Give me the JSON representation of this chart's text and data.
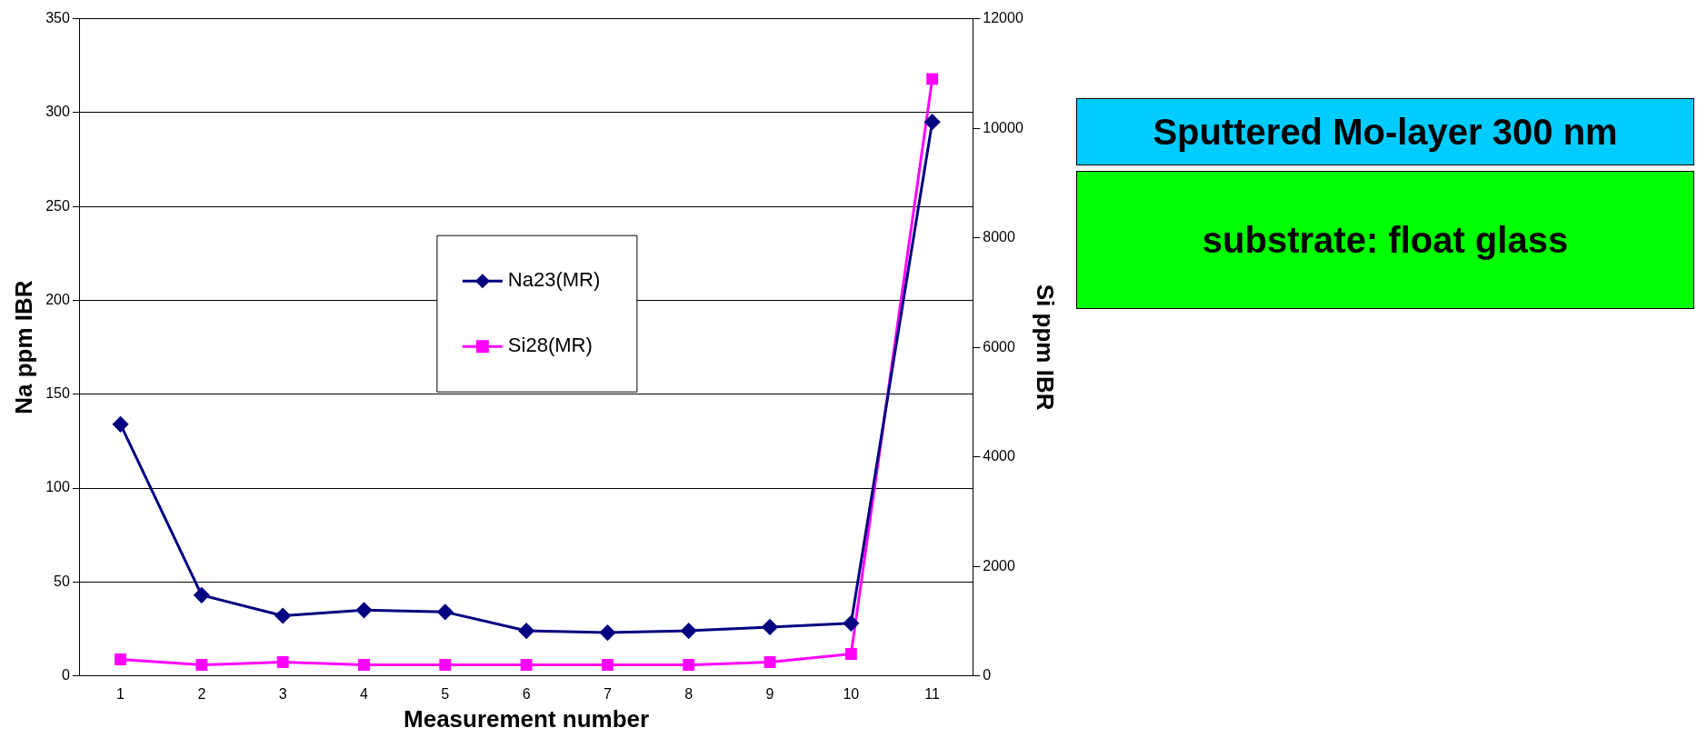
{
  "chart_data": {
    "type": "line",
    "xlabel": "Measurement number",
    "ylabel": "Na ppm IBR",
    "y2label": "Si ppm IBR",
    "categories": [
      "1",
      "2",
      "3",
      "4",
      "5",
      "6",
      "7",
      "8",
      "9",
      "10",
      "11"
    ],
    "series": [
      {
        "name": "Na23(MR)",
        "color": "#000080",
        "marker": "diamond",
        "values": [
          134,
          43,
          32,
          35,
          34,
          24,
          23,
          24,
          26,
          28,
          295
        ]
      },
      {
        "name": "Si28(MR)",
        "color": "#ff00ff",
        "marker": "square",
        "axis": "y2",
        "values": [
          300,
          200,
          250,
          200,
          200,
          200,
          200,
          200,
          250,
          400,
          10900
        ]
      }
    ],
    "ylim": [
      0,
      350
    ],
    "yticks": [
      0,
      50,
      100,
      150,
      200,
      250,
      300,
      350
    ],
    "y2lim": [
      0,
      12000
    ],
    "y2ticks": [
      0,
      2000,
      4000,
      6000,
      8000,
      10000,
      12000
    ],
    "grid": "y",
    "legend": "center",
    "line_style": "solid",
    "annotations": [
      "Sputtered Mo-layer 300 nm",
      "substrate: float glass"
    ]
  }
}
